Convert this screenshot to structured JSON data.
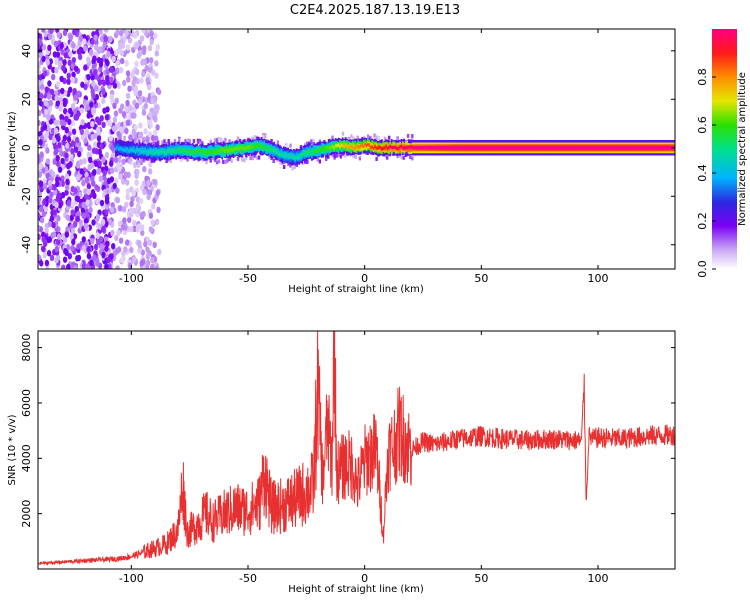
{
  "figure": {
    "title": "C2E4.2025.187.13.19.E13"
  },
  "chart_data": [
    {
      "type": "heatmap",
      "xlabel": "Height of straight line (km)",
      "ylabel": "Frequency (Hz)",
      "xlim": [
        -140,
        133
      ],
      "ylim": [
        -50,
        49
      ],
      "xticks": [
        -100,
        -50,
        0,
        50,
        100
      ],
      "yticks": [
        -40,
        -20,
        0,
        20,
        40
      ],
      "colorbar": {
        "label": "Normalized spectral amplitude",
        "range": [
          0,
          1
        ],
        "ticks": [
          0.0,
          0.2,
          0.4,
          0.6,
          0.8
        ],
        "colormap": [
          "#ffffff",
          "#c9a8f5",
          "#7b00f5",
          "#2a2ae0",
          "#00b4ff",
          "#00e08a",
          "#2be000",
          "#e6e600",
          "#ff8c00",
          "#ff1a1a",
          "#ff0080"
        ]
      },
      "noise_region_km": [
        -140,
        -88
      ],
      "signal_start_km": -107,
      "ridge": {
        "height_km": [
          -107,
          -100,
          -90,
          -80,
          -70,
          -60,
          -50,
          -45,
          -40,
          -35,
          -30,
          -25,
          -20,
          -15,
          -10,
          -5,
          0,
          5,
          10,
          20,
          40,
          60,
          80,
          93,
          100,
          133
        ],
        "frequency_hz": [
          0,
          -1,
          -2,
          -1,
          -2,
          -1,
          0,
          1,
          -1,
          -3,
          -4,
          -2,
          -1,
          0,
          1,
          0,
          1,
          0,
          0,
          0,
          0,
          0,
          0,
          0,
          0,
          0
        ],
        "amplitude": [
          0.35,
          0.4,
          0.45,
          0.5,
          0.55,
          0.6,
          0.6,
          0.55,
          0.5,
          0.45,
          0.45,
          0.5,
          0.55,
          0.6,
          0.7,
          0.75,
          0.8,
          0.85,
          0.9,
          0.95,
          1.0,
          1.0,
          1.0,
          1.0,
          1.0,
          1.0
        ]
      }
    },
    {
      "type": "line",
      "xlabel": "Height of straight line (km)",
      "ylabel": "SNR (10 * v/v)",
      "xlim": [
        -140,
        133
      ],
      "ylim": [
        0,
        8600
      ],
      "xticks": [
        -100,
        -50,
        0,
        50,
        100
      ],
      "yticks": [
        2000,
        4000,
        6000,
        8000
      ],
      "color": "#e83030",
      "series": [
        {
          "x": [
            -140,
            -130,
            -120,
            -110,
            -105,
            -100,
            -95,
            -90,
            -85,
            -80,
            -78,
            -76,
            -72,
            -68,
            -65,
            -60,
            -55,
            -50,
            -45,
            -43,
            -40,
            -35,
            -30,
            -25,
            -22,
            -20,
            -18,
            -16,
            -14,
            -13,
            -12,
            -10,
            -8,
            -5,
            -3,
            0,
            2,
            5,
            8,
            10,
            12,
            15,
            20,
            25,
            30,
            40,
            50,
            60,
            70,
            80,
            90,
            93,
            94,
            95,
            96,
            98,
            100,
            110,
            120,
            133
          ],
          "y": [
            200,
            250,
            300,
            350,
            380,
            450,
            600,
            750,
            900,
            1400,
            3100,
            1300,
            1600,
            2000,
            1700,
            2000,
            2200,
            2100,
            2400,
            3500,
            2200,
            2300,
            2500,
            2800,
            3000,
            6600,
            3200,
            5200,
            3800,
            8500,
            3500,
            3600,
            3800,
            3700,
            3000,
            3900,
            4100,
            4300,
            1200,
            4200,
            4400,
            5000,
            4300,
            4600,
            4500,
            4700,
            4800,
            4700,
            4650,
            4700,
            4650,
            4600,
            6900,
            2300,
            4800,
            4700,
            4750,
            4700,
            4800,
            4850
          ]
        }
      ]
    }
  ]
}
